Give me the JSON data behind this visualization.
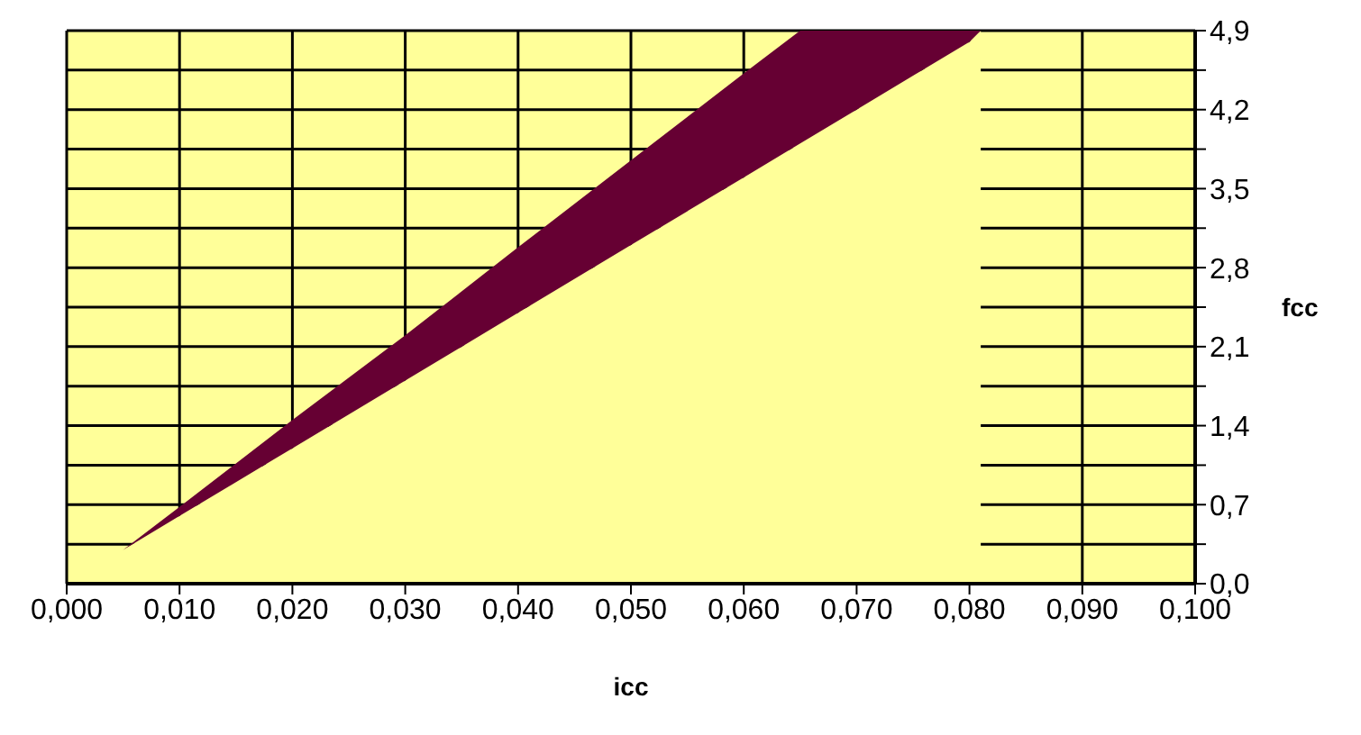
{
  "chart_data": {
    "type": "area",
    "stacked": true,
    "xlabel": "icc",
    "ylabel": "fcc",
    "x": [
      0.005,
      0.01,
      0.02,
      0.03,
      0.04,
      0.05,
      0.06,
      0.065,
      0.07,
      0.08,
      0.081
    ],
    "series": [
      {
        "color": "#ffff99",
        "values": [
          0.3,
          0.6,
          1.2,
          1.8,
          2.4,
          3.0,
          3.6,
          3.9,
          4.2,
          4.8,
          4.9
        ]
      },
      {
        "color": "#660033",
        "values": [
          0,
          0.08,
          0.25,
          0.4,
          0.58,
          0.75,
          0.92,
          1.0,
          0.7,
          0.1,
          0
        ]
      }
    ],
    "xlim": [
      0,
      0.1
    ],
    "xticks": [
      {
        "value": 0,
        "label": "0,000"
      },
      {
        "value": 0.01,
        "label": "0,010"
      },
      {
        "value": 0.02,
        "label": "0,020"
      },
      {
        "value": 0.03,
        "label": "0,030"
      },
      {
        "value": 0.04,
        "label": "0,040"
      },
      {
        "value": 0.05,
        "label": "0,050"
      },
      {
        "value": 0.06,
        "label": "0,060"
      },
      {
        "value": 0.07,
        "label": "0,070"
      },
      {
        "value": 0.08,
        "label": "0,080"
      },
      {
        "value": 0.09,
        "label": "0,090"
      },
      {
        "value": 0.1,
        "label": "0,100"
      }
    ],
    "ylim": [
      0,
      4.9
    ],
    "yticks": [
      {
        "value": 0,
        "label": "0,0"
      },
      {
        "value": 0.35,
        "label": null
      },
      {
        "value": 0.7,
        "label": "0,7"
      },
      {
        "value": 1.05,
        "label": null
      },
      {
        "value": 1.4,
        "label": "1,4"
      },
      {
        "value": 1.75,
        "label": null
      },
      {
        "value": 2.1,
        "label": "2,1"
      },
      {
        "value": 2.45,
        "label": null
      },
      {
        "value": 2.8,
        "label": "2,8"
      },
      {
        "value": 3.15,
        "label": null
      },
      {
        "value": 3.5,
        "label": "3,5"
      },
      {
        "value": 3.85,
        "label": null
      },
      {
        "value": 4.2,
        "label": "4,2"
      },
      {
        "value": 4.55,
        "label": null
      },
      {
        "value": 4.9,
        "label": "4,9"
      }
    ],
    "grid": true,
    "legend": false
  }
}
